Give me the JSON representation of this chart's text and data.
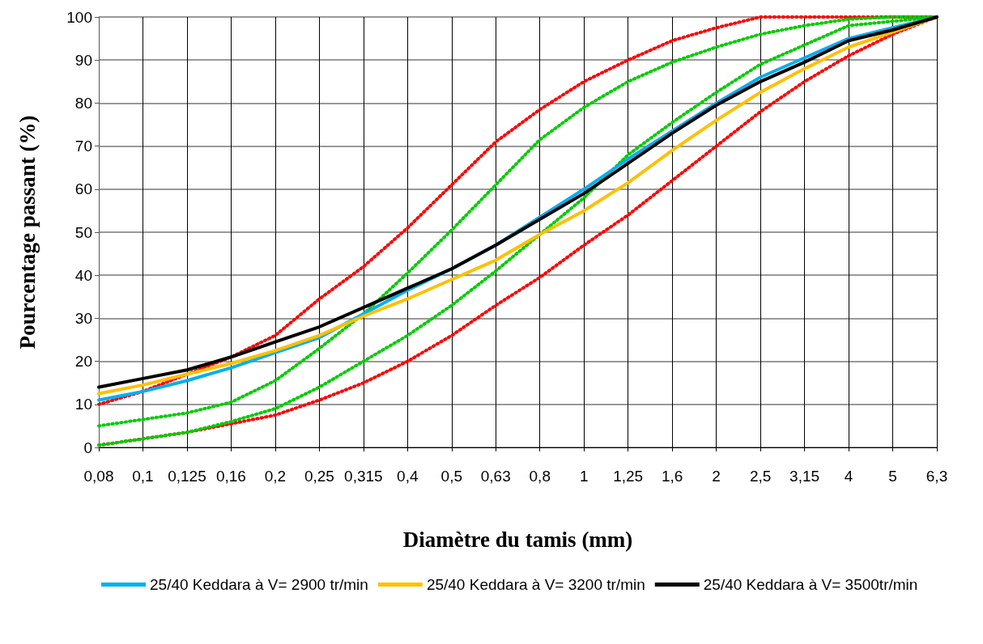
{
  "chart_data": {
    "type": "line",
    "xlabel": "Diamètre du tamis (mm)",
    "ylabel": "Pourcentage passant (%)",
    "categories": [
      "0,08",
      "0,1",
      "0,125",
      "0,16",
      "0,2",
      "0,25",
      "0,315",
      "0,4",
      "0,5",
      "0,63",
      "0,8",
      "1",
      "1,25",
      "1,6",
      "2",
      "2,5",
      "3,15",
      "4",
      "5",
      "6,3"
    ],
    "ylim": [
      0,
      100
    ],
    "yticks": [
      0,
      10,
      20,
      30,
      40,
      50,
      60,
      70,
      80,
      90,
      100
    ],
    "grid": true,
    "legend": "bottom",
    "marker": "none",
    "series": [
      {
        "color": "#ff0000",
        "line_style": "dotted",
        "values": [
          10,
          13,
          17,
          21,
          26,
          34.5,
          42,
          51,
          61,
          71,
          78.5,
          85,
          90,
          94.5,
          97.5,
          100,
          100,
          100,
          100,
          100
        ]
      },
      {
        "color": "#ff0000",
        "line_style": "dotted",
        "values": [
          0.5,
          2,
          3.5,
          5.5,
          7.5,
          11,
          15,
          20,
          26,
          33,
          39.5,
          47,
          54,
          62,
          70,
          78,
          85,
          91,
          96,
          100
        ]
      },
      {
        "color": "#00cc00",
        "line_style": "dotted",
        "values": [
          5,
          6.5,
          8,
          10.5,
          15.5,
          23,
          31,
          40.5,
          50.5,
          61,
          71.5,
          79,
          85,
          89.5,
          93,
          96,
          98,
          99.5,
          100,
          100
        ]
      },
      {
        "color": "#00cc00",
        "line_style": "dotted",
        "values": [
          0.5,
          2,
          3.5,
          6,
          9,
          14,
          20,
          26,
          33,
          41,
          49.5,
          58,
          68,
          75.5,
          82.5,
          89,
          93.5,
          98,
          99,
          100
        ]
      },
      {
        "name": "25/40 Keddara à V= 2900 tr/min",
        "color": "#00b0f0",
        "line_style": "solid",
        "values": [
          11,
          13,
          15.5,
          18.5,
          22,
          25.5,
          31,
          36.5,
          41.5,
          47,
          53.5,
          60,
          67,
          73.5,
          80,
          86,
          90.5,
          95,
          97.5,
          100
        ]
      },
      {
        "name": "25/40 Keddara à V= 3200 tr/min",
        "color": "#ffc000",
        "line_style": "solid",
        "values": [
          12.5,
          14.5,
          17,
          19.5,
          22.5,
          26,
          30.5,
          34.5,
          39,
          43.5,
          49.5,
          55,
          61.5,
          69,
          76,
          82.5,
          88,
          93,
          96.5,
          100
        ]
      },
      {
        "name": "25/40 Keddara à V= 3500tr/min",
        "color": "#000000",
        "line_style": "solid",
        "values": [
          14,
          16,
          18,
          21,
          24.5,
          28,
          32.5,
          37,
          41.5,
          47,
          53,
          59,
          66,
          73,
          79.5,
          85,
          89.5,
          94.5,
          97,
          100
        ]
      }
    ]
  }
}
